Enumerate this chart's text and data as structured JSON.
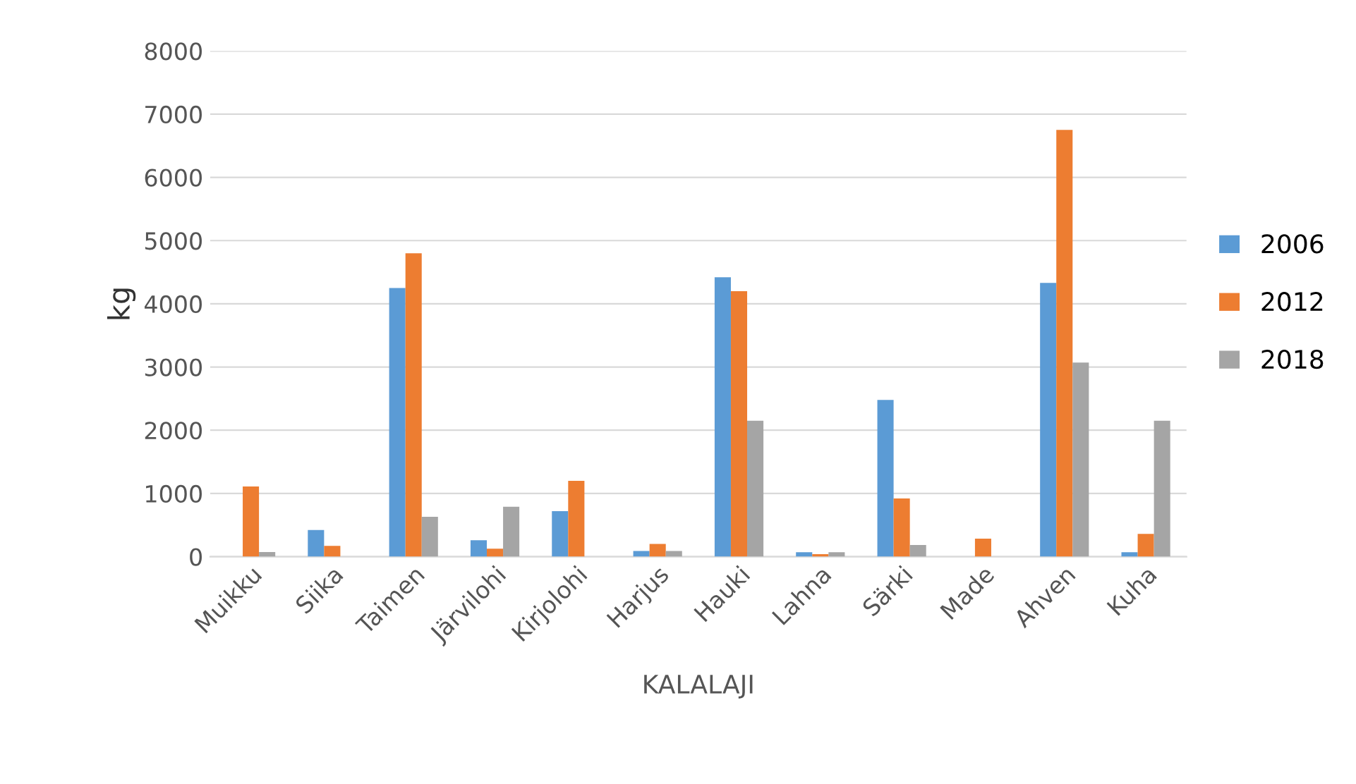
{
  "chart_data": {
    "type": "bar",
    "xlabel": "KALALAJI",
    "ylabel": "kg",
    "categories": [
      "Muikku",
      "Siika",
      "Taimen",
      "Järvilohi",
      "Kirjolohi",
      "Harjus",
      "Hauki",
      "Lahna",
      "Särki",
      "Made",
      "Ahven",
      "Kuha"
    ],
    "series": [
      {
        "name": "2006",
        "color": "#5b9bd5",
        "values": [
          null,
          420,
          4250,
          260,
          720,
          90,
          4420,
          70,
          2480,
          null,
          4330,
          70
        ]
      },
      {
        "name": "2012",
        "color": "#ed7d31",
        "values": [
          1110,
          170,
          4800,
          125,
          1200,
          200,
          4200,
          40,
          920,
          285,
          6750,
          360
        ]
      },
      {
        "name": "2018",
        "color": "#a5a5a5",
        "values": [
          74,
          null,
          630,
          790,
          null,
          90,
          2150,
          70,
          185,
          null,
          3070,
          2150
        ]
      }
    ],
    "ylim": [
      0,
      8000
    ],
    "yticks": [
      0,
      1000,
      2000,
      3000,
      4000,
      5000,
      6000,
      7000,
      8000
    ],
    "grid": "y",
    "legend": "right"
  }
}
